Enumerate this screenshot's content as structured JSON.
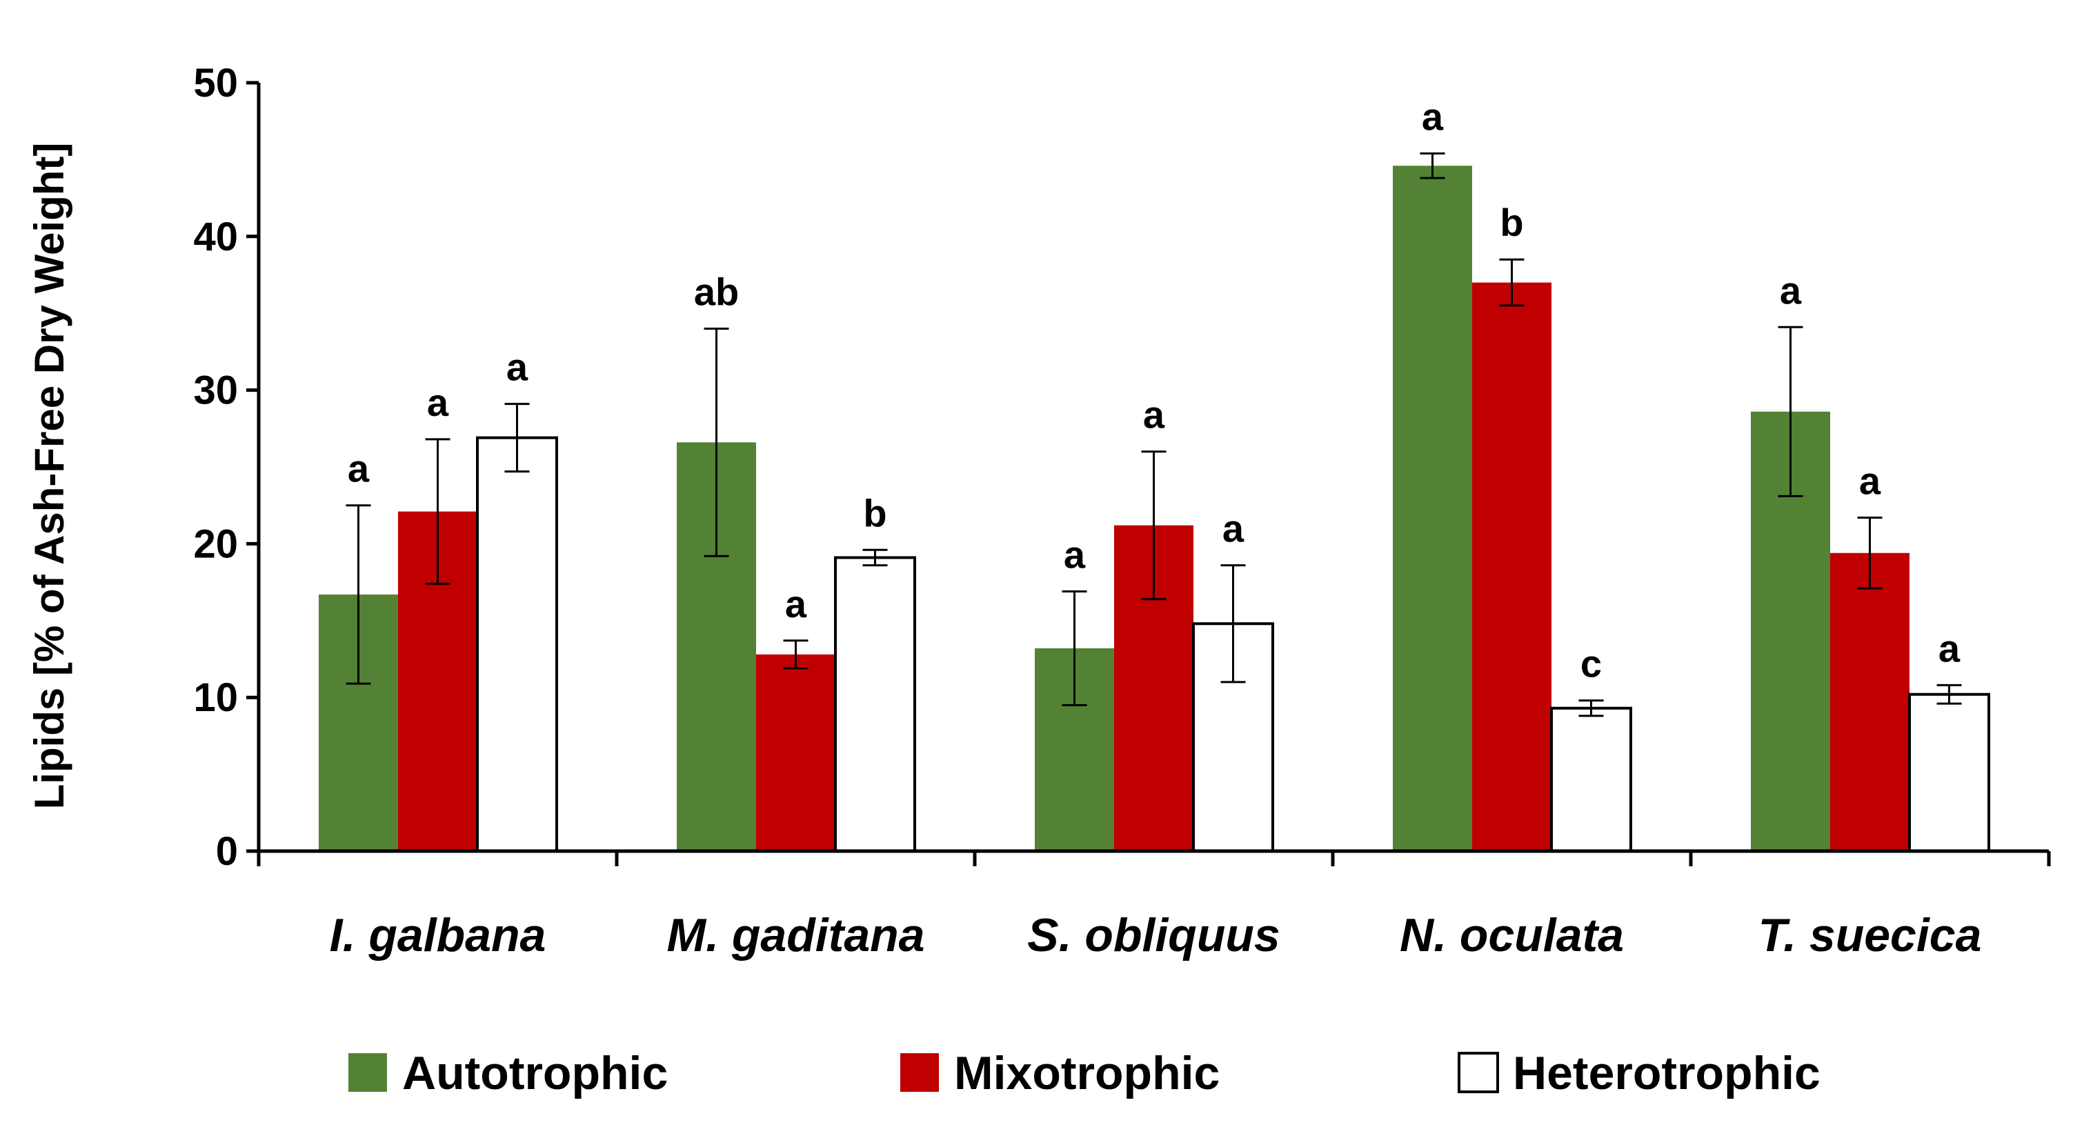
{
  "chart_data": {
    "type": "bar",
    "title": "",
    "xlabel": "",
    "ylabel": "Lipids [% of Ash-Free Dry Weight]",
    "ylim": [
      0,
      50
    ],
    "yticks": [
      0,
      10,
      20,
      30,
      40,
      50
    ],
    "categories": [
      "I. galbana",
      "M. gaditana",
      "S. obliquus",
      "N. oculata",
      "T. suecica"
    ],
    "series": [
      {
        "name": "Autotrophic",
        "color": "#548235",
        "values": [
          16.7,
          26.6,
          13.2,
          44.6,
          28.6
        ],
        "errors": [
          5.8,
          7.4,
          3.7,
          0.8,
          5.5
        ],
        "labels": [
          "a",
          "ab",
          "a",
          "a",
          "a"
        ]
      },
      {
        "name": "Mixotrophic",
        "color": "#C00000",
        "values": [
          22.1,
          12.8,
          21.2,
          37.0,
          19.4
        ],
        "errors": [
          4.7,
          0.9,
          4.8,
          1.5,
          2.3
        ],
        "labels": [
          "a",
          "a",
          "a",
          "b",
          "a"
        ]
      },
      {
        "name": "Heterotrophic",
        "color": "#FFFFFF",
        "values": [
          26.9,
          19.1,
          14.8,
          9.3,
          10.2
        ],
        "errors": [
          2.2,
          0.5,
          3.8,
          0.5,
          0.6
        ],
        "labels": [
          "a",
          "b",
          "a",
          "c",
          "a"
        ]
      }
    ],
    "legend": {
      "position": "bottom",
      "entries": [
        "Autotrophic",
        "Mixotrophic",
        "Heterotrophic"
      ]
    }
  }
}
